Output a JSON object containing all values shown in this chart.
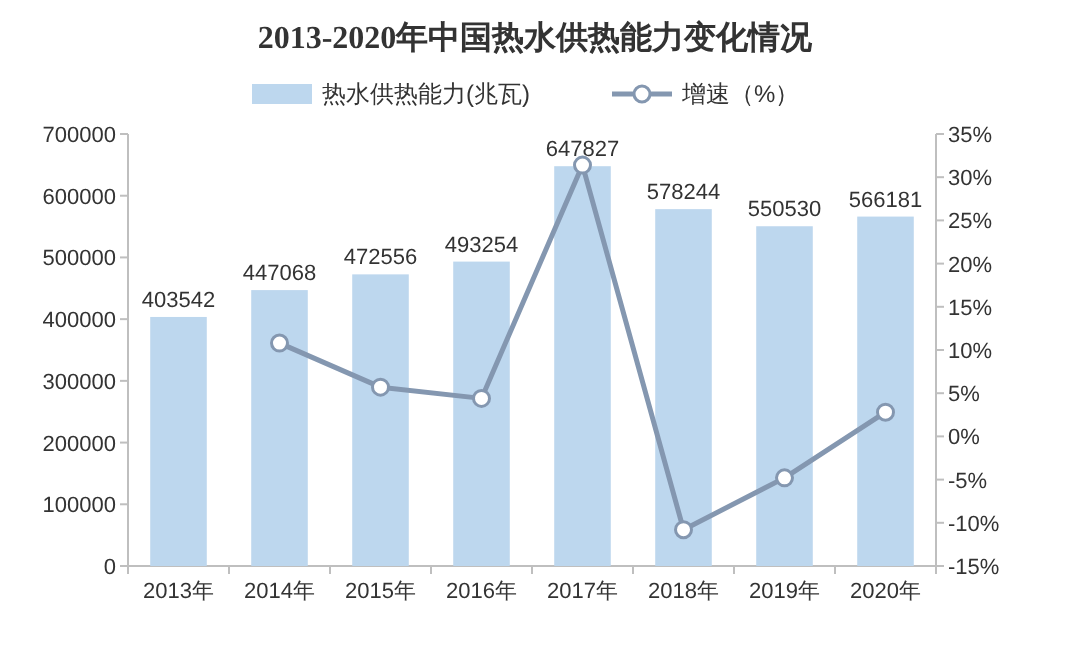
{
  "chart_data": {
    "type": "bar",
    "title": "2013-2020年中国热水供热能力变化情况",
    "categories": [
      "2013年",
      "2014年",
      "2015年",
      "2016年",
      "2017年",
      "2018年",
      "2019年",
      "2020年"
    ],
    "series": [
      {
        "name": "热水供热能力(兆瓦)",
        "color": "#bdd7ee",
        "values": [
          403542,
          447068,
          472556,
          493254,
          647827,
          578244,
          550530,
          566181
        ],
        "value_labels": [
          "403542",
          "447068",
          "472556",
          "493254",
          "647827",
          "578244",
          "550530",
          "566181"
        ]
      },
      {
        "name": "增速（%）",
        "type": "line",
        "axis": "y2",
        "color": "#8497b0",
        "marker": "circle",
        "values": [
          null,
          10.8,
          5.7,
          4.4,
          31.4,
          -10.8,
          -4.8,
          2.8
        ]
      }
    ],
    "ylim": [
      0,
      700000
    ],
    "yticks": [
      0,
      100000,
      200000,
      300000,
      400000,
      500000,
      600000,
      700000
    ],
    "y2lim": [
      -15,
      35
    ],
    "y2ticks": [
      {
        "value": -15,
        "label": "-15%"
      },
      {
        "value": -10,
        "label": "-10%"
      },
      {
        "value": -5,
        "label": "-5%"
      },
      {
        "value": 0,
        "label": "0%"
      },
      {
        "value": 5,
        "label": "5%"
      },
      {
        "value": 10,
        "label": "10%"
      },
      {
        "value": 15,
        "label": "15%"
      },
      {
        "value": 20,
        "label": "20%"
      },
      {
        "value": 25,
        "label": "25%"
      },
      {
        "value": 30,
        "label": "30%"
      },
      {
        "value": 35,
        "label": "35%"
      }
    ],
    "legend": "top"
  }
}
